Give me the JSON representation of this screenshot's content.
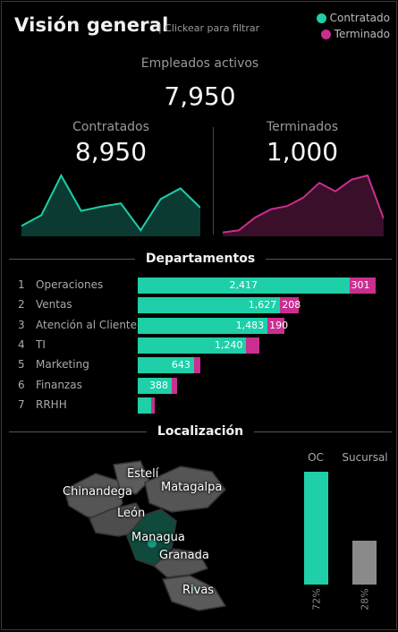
{
  "header": {
    "title": "Visión general",
    "subtitle": "| Clickear para filtrar"
  },
  "legend": [
    {
      "label": "Contratado",
      "color": "#1fcfa8"
    },
    {
      "label": "Terminado",
      "color": "#c92f8f"
    }
  ],
  "kpis": {
    "active_label": "Empleados activos",
    "active_value": "7,950",
    "hired_label": "Contratados",
    "hired_value": "8,950",
    "terminated_label": "Terminados",
    "terminated_value": "1,000"
  },
  "sparklines": {
    "hired": [
      8,
      18,
      55,
      22,
      26,
      29,
      4,
      33,
      43,
      25
    ],
    "terminated": [
      2,
      4,
      16,
      24,
      27,
      35,
      49,
      41,
      52,
      56,
      15
    ]
  },
  "departments": {
    "title": "Departamentos",
    "rows": [
      {
        "rank": "1",
        "name": "Operaciones",
        "hired": 2417,
        "hired_label": "2,417",
        "terminated": 301,
        "terminated_label": "301"
      },
      {
        "rank": "2",
        "name": "Ventas",
        "hired": 1627,
        "hired_label": "1,627",
        "terminated": 208,
        "terminated_label": "208"
      },
      {
        "rank": "3",
        "name": "Atención al Cliente",
        "hired": 1483,
        "hired_label": "1,483",
        "terminated": 190,
        "terminated_label": "190"
      },
      {
        "rank": "4",
        "name": "TI",
        "hired": 1240,
        "hired_label": "1,240",
        "terminated": 150,
        "terminated_label": ""
      },
      {
        "rank": "5",
        "name": "Marketing",
        "hired": 643,
        "hired_label": "643",
        "terminated": 70,
        "terminated_label": ""
      },
      {
        "rank": "6",
        "name": "Finanzas",
        "hired": 388,
        "hired_label": "388",
        "terminated": 60,
        "terminated_label": ""
      },
      {
        "rank": "7",
        "name": "RRHH",
        "hired": 150,
        "hired_label": "",
        "terminated": 20,
        "terminated_label": ""
      }
    ]
  },
  "location": {
    "title": "Localización",
    "cities": [
      "Estelí",
      "Chinandega",
      "Matagalpa",
      "León",
      "Managua",
      "Granada",
      "Rivas"
    ],
    "split": [
      {
        "label": "OC",
        "pct": 72,
        "pct_label": "72%",
        "color": "#1fcfa8"
      },
      {
        "label": "Sucursal",
        "pct": 28,
        "pct_label": "28%",
        "color": "#8a8a8a"
      }
    ]
  }
}
